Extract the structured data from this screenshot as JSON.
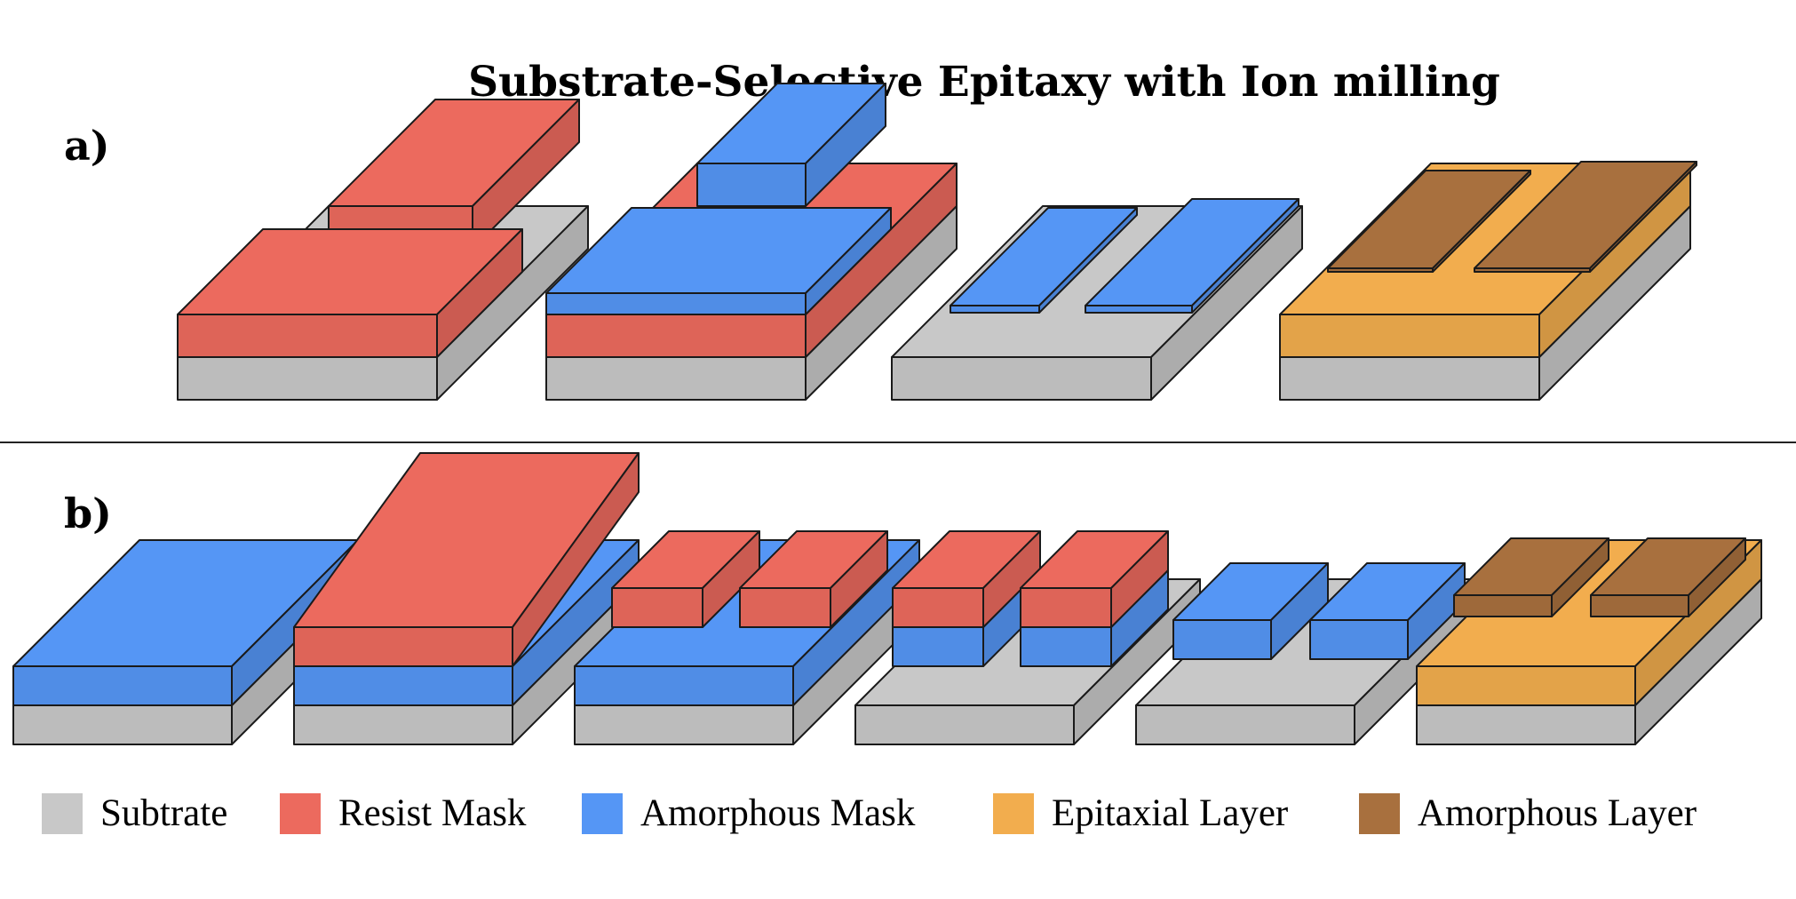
{
  "title": "Substrate-Selective Epitaxy with Ion milling",
  "panel_a_label": "a)",
  "panel_b_label": "b)",
  "legend": [
    {
      "label": "Subtrate",
      "color": "#c8c8c8"
    },
    {
      "label": "Resist Mask",
      "color": "#ec6a5e"
    },
    {
      "label": "Amorphous Mask",
      "color": "#5596f5"
    },
    {
      "label": "Epitaxial Layer",
      "color": "#f2ad4e"
    },
    {
      "label": "Amorphous Layer",
      "color": "#a8703e"
    }
  ],
  "colors": {
    "substrate": "#c8c8c8",
    "resist": "#ec6a5e",
    "amorphous_mask": "#5596f5",
    "epitaxial": "#f2ad4e",
    "amorphous_layer": "#a8703e",
    "divider": "#222222"
  }
}
